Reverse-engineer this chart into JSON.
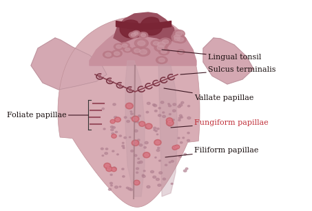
{
  "bg_color": "#ffffff",
  "tongue_light": "#ddb8bf",
  "tongue_mid": "#c9959f",
  "tongue_dark": "#a06070",
  "tongue_darker": "#7a3548",
  "tonsil_dark": "#8b3045",
  "text_color": "#1a1010",
  "line_color": "#8b1a2a",
  "label_lingual_tonsil": "Lingual tonsil",
  "label_sulcus": "Sulcus terminalis",
  "label_foliate": "Foliate papillae",
  "label_vallate": "Vallate papillae",
  "label_fungiform": "Fungiform papillae",
  "label_filiform": "Filiform papillae",
  "font_size": 8.0
}
